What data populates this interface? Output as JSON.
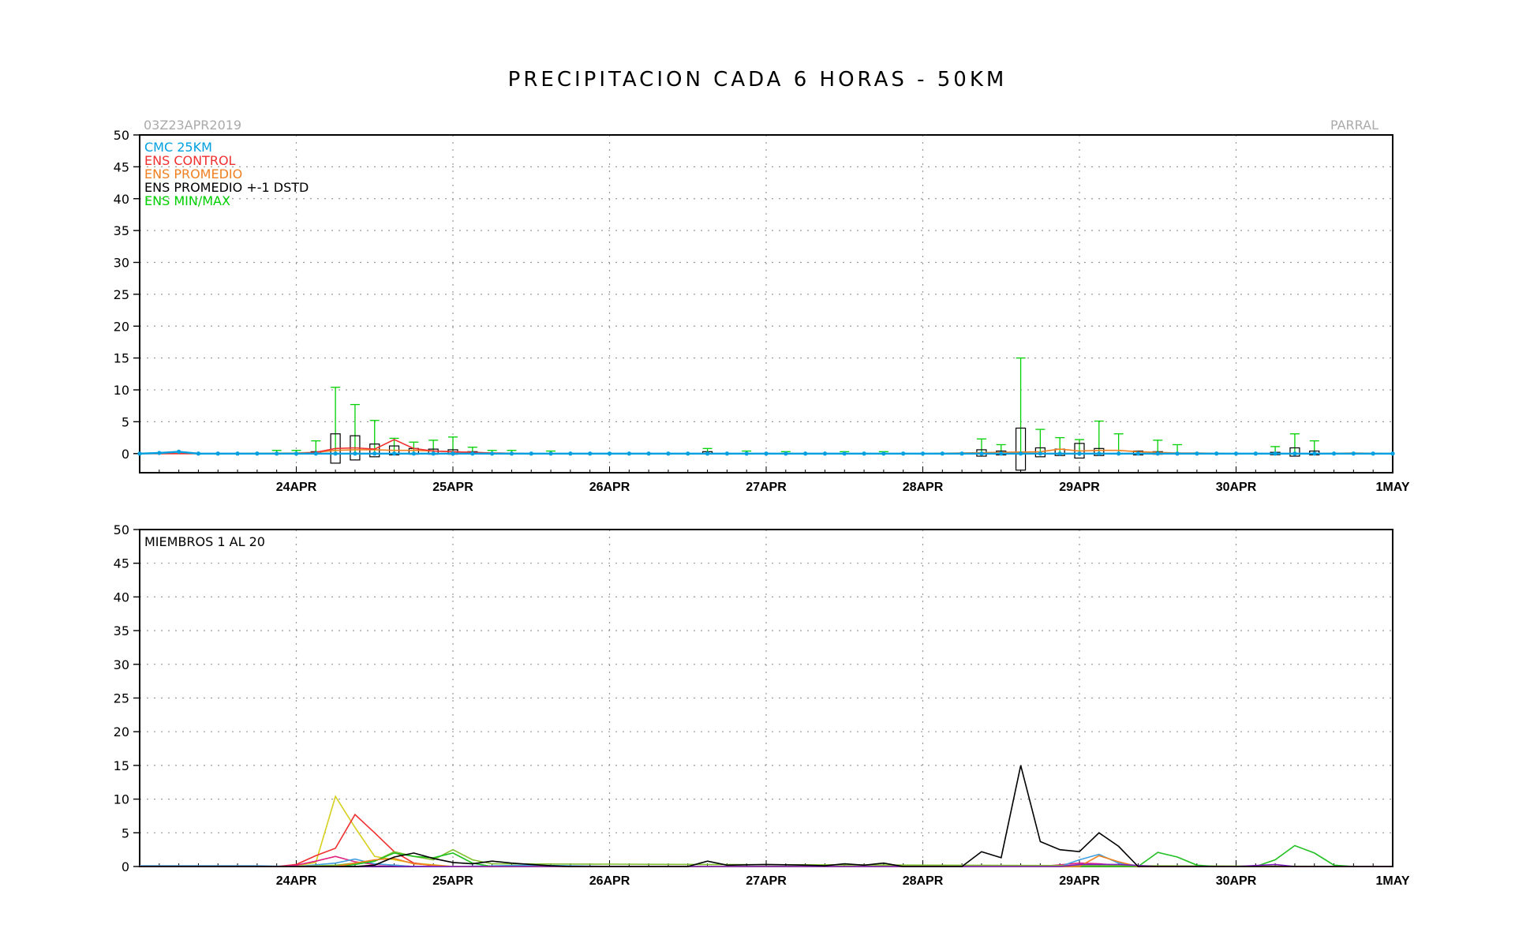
{
  "title": "PRECIPITACION CADA 6 HORAS - 50KM",
  "init_label": "03Z23APR2019",
  "station": "PARRAL",
  "colors": {
    "cmc": "#00a0e0",
    "control": "#f03030",
    "promedio": "#f08020",
    "stdbox": "#000000",
    "minmax": "#00d000"
  },
  "chart_data": [
    {
      "type": "line",
      "panel": "top",
      "xlabels": [
        "24APR",
        "25APR",
        "26APR",
        "27APR",
        "28APR",
        "29APR",
        "30APR",
        "1MAY"
      ],
      "xlim": [
        0,
        32
      ],
      "ylim": [
        -3,
        50
      ],
      "yticks": [
        0,
        5,
        10,
        15,
        20,
        25,
        30,
        35,
        40,
        45,
        50
      ],
      "grid": true,
      "legend_position": "top-left",
      "legend": [
        {
          "label": "CMC 25KM",
          "color": "#00a0e0"
        },
        {
          "label": "ENS CONTROL",
          "color": "#f03030"
        },
        {
          "label": "ENS PROMEDIO",
          "color": "#f08020"
        },
        {
          "label": "ENS PROMEDIO +-1 DSTD",
          "color": "#000000"
        },
        {
          "label": "ENS MIN/MAX",
          "color": "#00d000"
        }
      ],
      "series": [
        {
          "name": "CMC 25KM",
          "x": [
            0,
            0.5,
            1,
            1.5,
            2,
            2.5,
            3,
            3.5,
            4,
            4.5,
            5,
            5.5,
            6,
            6.5,
            7,
            7.5,
            8,
            8.5,
            9,
            9.5,
            10,
            10.5,
            11,
            11.5,
            12,
            12.5,
            13,
            13.5,
            14,
            14.5,
            15,
            15.5,
            16,
            16.5,
            17,
            17.5,
            18,
            18.5,
            19,
            19.5,
            20,
            20.5,
            21,
            21.5,
            22,
            22.5,
            23,
            23.5,
            24,
            24.5,
            25,
            25.5,
            26,
            26.5,
            27,
            27.5,
            28,
            28.5,
            29,
            29.5,
            30,
            30.5,
            31,
            31.5,
            32
          ],
          "y": [
            0,
            0.1,
            0.3,
            0,
            0,
            0,
            0,
            0,
            0,
            0,
            0,
            0,
            0,
            0,
            0,
            0,
            0,
            0,
            0,
            0,
            0,
            0,
            0,
            0,
            0,
            0,
            0,
            0,
            0,
            0,
            0,
            0,
            0,
            0,
            0,
            0,
            0,
            0,
            0,
            0,
            0,
            0,
            0,
            0,
            0,
            0,
            0,
            0,
            0,
            0,
            0,
            0,
            0,
            0,
            0,
            0,
            0,
            0,
            0,
            0,
            0,
            0,
            0,
            0,
            0
          ]
        },
        {
          "name": "ENS CONTROL",
          "x": [
            0,
            1,
            2,
            3,
            4,
            4.5,
            5,
            5.5,
            6,
            6.5,
            7,
            7.5,
            8,
            8.5,
            9,
            10,
            12,
            16,
            20,
            22,
            24,
            26,
            28,
            30,
            32
          ],
          "y": [
            0,
            0,
            0,
            0,
            0,
            0.2,
            0.8,
            0.9,
            0.7,
            2.2,
            0.8,
            0.4,
            0.3,
            0.2,
            0.1,
            0,
            0,
            0,
            0,
            0,
            0,
            0,
            0,
            0,
            0
          ]
        },
        {
          "name": "ENS PROMEDIO",
          "x": [
            0,
            2,
            4,
            4.5,
            5,
            5.5,
            6,
            6.5,
            7,
            7.5,
            8,
            8.5,
            9,
            10,
            12,
            16,
            20,
            22,
            23,
            23.5,
            24,
            24.5,
            25,
            25.5,
            26,
            26.5,
            27,
            28,
            30,
            31,
            32
          ],
          "y": [
            0,
            0,
            0.1,
            0.2,
            0.5,
            0.6,
            0.6,
            0.5,
            0.5,
            0.4,
            0.3,
            0.2,
            0.1,
            0,
            0,
            0,
            0,
            0.2,
            0.3,
            0.7,
            0.4,
            0.5,
            0.5,
            0.3,
            0.2,
            0.1,
            0.1,
            0,
            0,
            0.1,
            0
          ]
        }
      ],
      "std_boxes": [
        {
          "x": 4.5,
          "low": 0,
          "high": 0.3
        },
        {
          "x": 5,
          "low": -1.5,
          "high": 3.1
        },
        {
          "x": 5.5,
          "low": -1.0,
          "high": 2.8
        },
        {
          "x": 6,
          "low": -0.5,
          "high": 1.5
        },
        {
          "x": 6.5,
          "low": -0.2,
          "high": 1.2
        },
        {
          "x": 7,
          "low": -0.1,
          "high": 0.8
        },
        {
          "x": 7.5,
          "low": -0.1,
          "high": 0.7
        },
        {
          "x": 8,
          "low": -0.1,
          "high": 0.6
        },
        {
          "x": 8.5,
          "low": 0,
          "high": 0.3
        },
        {
          "x": 14.5,
          "low": 0,
          "high": 0.3
        },
        {
          "x": 21.5,
          "low": -0.4,
          "high": 0.6
        },
        {
          "x": 22,
          "low": -0.2,
          "high": 0.4
        },
        {
          "x": 22.5,
          "low": -2.6,
          "high": 4.0
        },
        {
          "x": 23,
          "low": -0.5,
          "high": 0.9
        },
        {
          "x": 23.5,
          "low": -0.3,
          "high": 0.7
        },
        {
          "x": 24,
          "low": -0.7,
          "high": 1.6
        },
        {
          "x": 24.5,
          "low": -0.3,
          "high": 0.8
        },
        {
          "x": 25.5,
          "low": -0.2,
          "high": 0.4
        },
        {
          "x": 26,
          "low": -0.1,
          "high": 0.3
        },
        {
          "x": 29,
          "low": 0,
          "high": 0.2
        },
        {
          "x": 29.5,
          "low": -0.4,
          "high": 0.9
        },
        {
          "x": 30,
          "low": -0.2,
          "high": 0.4
        }
      ],
      "minmax_whiskers": [
        {
          "x": 3.5,
          "max": 0.5
        },
        {
          "x": 4,
          "max": 0.5
        },
        {
          "x": 4.5,
          "max": 2.0
        },
        {
          "x": 5,
          "max": 10.4
        },
        {
          "x": 5.5,
          "max": 7.7
        },
        {
          "x": 6,
          "max": 5.2
        },
        {
          "x": 6.5,
          "max": 2.4
        },
        {
          "x": 7,
          "max": 1.8
        },
        {
          "x": 7.5,
          "max": 2.1
        },
        {
          "x": 8,
          "max": 2.6
        },
        {
          "x": 8.5,
          "max": 1.0
        },
        {
          "x": 9,
          "max": 0.5
        },
        {
          "x": 9.5,
          "max": 0.5
        },
        {
          "x": 10.5,
          "max": 0.4
        },
        {
          "x": 14.5,
          "max": 0.8
        },
        {
          "x": 15.5,
          "max": 0.4
        },
        {
          "x": 16.5,
          "max": 0.3
        },
        {
          "x": 18,
          "max": 0.3
        },
        {
          "x": 19,
          "max": 0.3
        },
        {
          "x": 21.5,
          "max": 2.3
        },
        {
          "x": 22,
          "max": 1.4
        },
        {
          "x": 22.5,
          "max": 15.0
        },
        {
          "x": 23,
          "max": 3.8
        },
        {
          "x": 23.5,
          "max": 2.5
        },
        {
          "x": 24,
          "max": 2.2
        },
        {
          "x": 24.5,
          "max": 5.1
        },
        {
          "x": 25,
          "max": 3.1
        },
        {
          "x": 26,
          "max": 2.1
        },
        {
          "x": 26.5,
          "max": 1.4
        },
        {
          "x": 29,
          "max": 1.1
        },
        {
          "x": 29.5,
          "max": 3.1
        },
        {
          "x": 30,
          "max": 2.0
        }
      ]
    },
    {
      "type": "line",
      "panel": "bottom",
      "annotation": "MIEMBROS 1 AL 20",
      "xlabels": [
        "24APR",
        "25APR",
        "26APR",
        "27APR",
        "28APR",
        "29APR",
        "30APR",
        "1MAY"
      ],
      "xlim": [
        0,
        32
      ],
      "ylim": [
        0,
        50
      ],
      "yticks": [
        0,
        5,
        10,
        15,
        20,
        25,
        30,
        35,
        40,
        45,
        50
      ],
      "grid": true,
      "series": [
        {
          "color": "#d8d020",
          "x": [
            0,
            3.5,
            4,
            4.5,
            5,
            5.5,
            6,
            7,
            8,
            9,
            32
          ],
          "y": [
            0,
            0,
            0.1,
            0.6,
            10.4,
            5.8,
            1.5,
            0.5,
            0,
            0,
            0
          ]
        },
        {
          "color": "#f03030",
          "x": [
            0,
            3.5,
            4,
            4.5,
            5,
            5.5,
            6,
            6.5,
            7,
            7.5,
            8,
            32
          ],
          "y": [
            0,
            0,
            0.3,
            1.6,
            2.7,
            7.7,
            5.0,
            2.2,
            0.5,
            0.1,
            0,
            0
          ]
        },
        {
          "color": "#e02080",
          "x": [
            0,
            3.5,
            4,
            4.5,
            5,
            5.5,
            6,
            6.5,
            7,
            23,
            24,
            24.5,
            25,
            25.5,
            32
          ],
          "y": [
            0,
            0,
            0.2,
            0.8,
            1.5,
            0.7,
            0.3,
            0.2,
            0,
            0,
            0.5,
            0.4,
            0.2,
            0,
            0
          ]
        },
        {
          "color": "#40a0e0",
          "x": [
            0,
            1,
            2,
            3,
            4,
            5,
            5.5,
            6,
            6.5,
            7,
            8,
            10,
            12,
            14,
            23.5,
            24,
            24.5,
            25,
            25.5,
            26,
            32
          ],
          "y": [
            0.1,
            0.1,
            0.1,
            0.1,
            0,
            0.5,
            1.1,
            0.4,
            0.2,
            0,
            0,
            0.2,
            0,
            0,
            0,
            1.0,
            1.8,
            0.5,
            0.1,
            0,
            0
          ]
        },
        {
          "color": "#80c030",
          "x": [
            0,
            4,
            5,
            6,
            6.5,
            7,
            7.5,
            8,
            8.5,
            9,
            32
          ],
          "y": [
            0,
            0,
            0.2,
            0.8,
            2.2,
            1.5,
            1.0,
            2.5,
            1.0,
            0.4,
            0
          ]
        },
        {
          "color": "#20c020",
          "x": [
            0,
            4,
            5,
            5.5,
            6,
            6.5,
            7,
            7.5,
            8,
            8.5,
            9,
            25,
            25.5,
            26,
            26.5,
            27,
            27.5,
            28,
            28.5,
            29,
            29.5,
            30,
            30.5,
            31,
            32
          ],
          "y": [
            0,
            0,
            0,
            0.3,
            0.8,
            2.0,
            1.5,
            1.3,
            2.0,
            0.5,
            0,
            0,
            0,
            2.1,
            1.4,
            0.2,
            0,
            0,
            0,
            1.0,
            3.1,
            2.0,
            0.2,
            0,
            0
          ]
        },
        {
          "color": "#f08020",
          "x": [
            0,
            4,
            5,
            5.5,
            6,
            6.5,
            7,
            7.5,
            8,
            24,
            24.5,
            25,
            25.5,
            32
          ],
          "y": [
            0,
            0,
            0,
            0.5,
            1.0,
            1.2,
            0.4,
            0.2,
            0,
            0,
            1.6,
            0.7,
            0,
            0
          ]
        },
        {
          "color": "#8020c0",
          "x": [
            0,
            23.5,
            24,
            25,
            26,
            28,
            29,
            29.5,
            32
          ],
          "y": [
            0,
            0,
            0.3,
            0.3,
            0,
            0,
            0.3,
            0,
            0
          ]
        },
        {
          "color": "#000000",
          "x": [
            0,
            3,
            4,
            5,
            5.5,
            6,
            6.5,
            7,
            7.5,
            8,
            8.5,
            9,
            9.5,
            10,
            10.5,
            11,
            14,
            14.5,
            15,
            16,
            17,
            17.5,
            18,
            18.5,
            19,
            19.5,
            20,
            20.5,
            21,
            21.5,
            22,
            22.5,
            23,
            23.5,
            24,
            24.5,
            25,
            25.5,
            26,
            32
          ],
          "y": [
            0,
            0,
            0,
            0,
            0,
            0.2,
            1.4,
            2.0,
            1.2,
            0.6,
            0.4,
            0.8,
            0.5,
            0.3,
            0.1,
            0,
            0,
            0.8,
            0.2,
            0.3,
            0.2,
            0.1,
            0.4,
            0.2,
            0.5,
            0,
            0,
            0,
            0,
            2.2,
            1.3,
            15.0,
            3.7,
            2.5,
            2.2,
            5.0,
            3.0,
            0,
            0,
            0
          ]
        }
      ]
    }
  ]
}
